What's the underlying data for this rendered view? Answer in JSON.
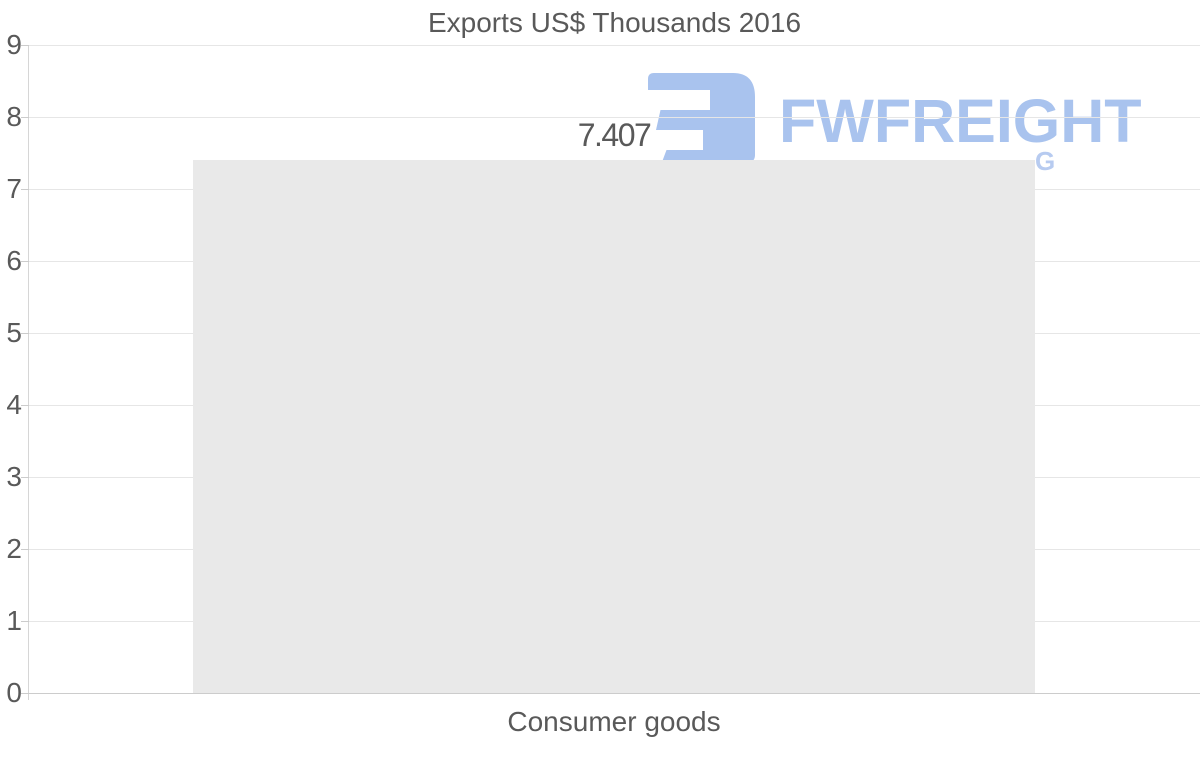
{
  "title": "Exports US$ Thousands 2016",
  "watermark": {
    "brand": "FWFREIGHT",
    "subtitle_visible_fragment": "G",
    "logo_color": "#a9c3ee",
    "fragment_color": "#b7cbf0",
    "icon": "fwfreight-mark"
  },
  "chart_data": {
    "type": "bar",
    "title": "Exports US$ Thousands 2016",
    "categories": [
      "Consumer goods"
    ],
    "values": [
      7.407
    ],
    "value_labels": [
      "7.407"
    ],
    "xlabel": "",
    "ylabel": "",
    "ylim": [
      0,
      9
    ],
    "yticks": [
      0,
      1,
      2,
      3,
      4,
      5,
      6,
      7,
      8,
      9
    ],
    "grid": true,
    "legend": "none",
    "bar_color": "#e9e9e9",
    "text_color": "#595959",
    "gridline_color": "#e6e6e6",
    "baseline_color": "#cccccc"
  }
}
